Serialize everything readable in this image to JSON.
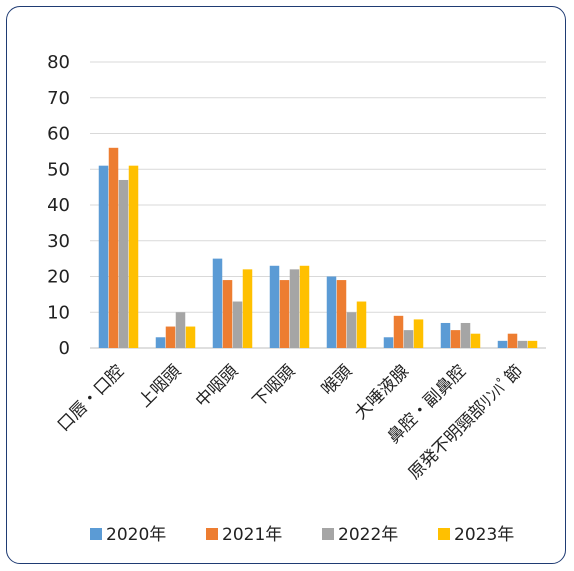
{
  "chart_data": {
    "type": "bar",
    "title": "",
    "xlabel": "",
    "ylabel": "",
    "ylim": [
      0,
      80
    ],
    "yticks": [
      0,
      10,
      20,
      30,
      40,
      50,
      60,
      70,
      80
    ],
    "grid": true,
    "legend_position": "bottom",
    "categories": [
      "口唇・口腔",
      "上咽頭",
      "中咽頭",
      "下咽頭",
      "喉頭",
      "大唾液腺",
      "鼻腔・副鼻腔",
      "原発不明頸部ﾘﾝﾊﾟ節"
    ],
    "series": [
      {
        "name": "2020年",
        "color": "#5b9bd5",
        "values": [
          51,
          3,
          25,
          23,
          20,
          3,
          7,
          2
        ]
      },
      {
        "name": "2021年",
        "color": "#ed7d31",
        "values": [
          56,
          6,
          19,
          19,
          19,
          9,
          5,
          4
        ]
      },
      {
        "name": "2022年",
        "color": "#a5a5a5",
        "values": [
          47,
          10,
          13,
          22,
          10,
          5,
          7,
          2
        ]
      },
      {
        "name": "2023年",
        "color": "#ffc000",
        "values": [
          51,
          6,
          22,
          23,
          13,
          8,
          4,
          2
        ]
      }
    ]
  }
}
